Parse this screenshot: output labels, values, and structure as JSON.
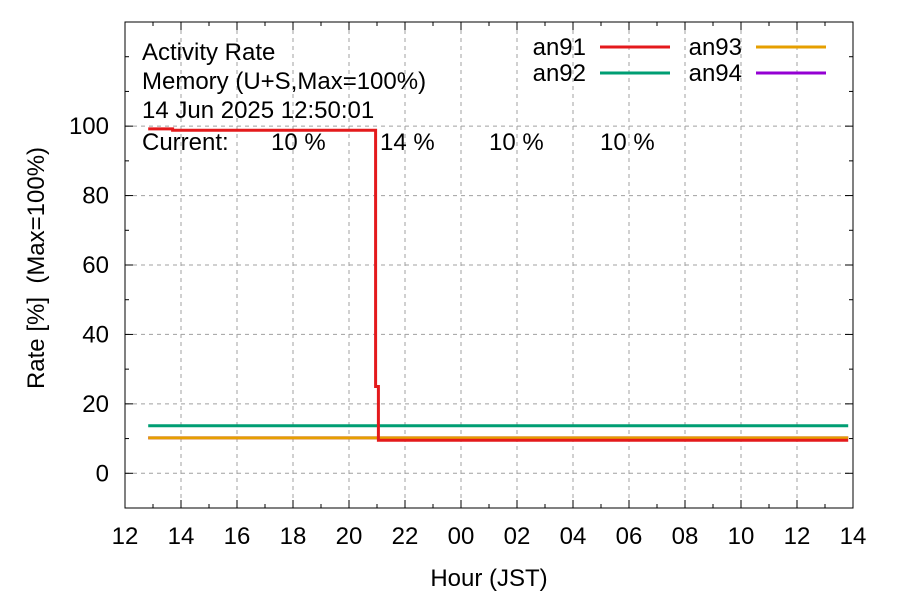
{
  "chart_data": {
    "type": "line",
    "title_lines": [
      "Activity Rate",
      "Memory (U+S,Max=100%)",
      "14 Jun 2025 12:50:01"
    ],
    "current_label": "Current:",
    "current_values": [
      {
        "text": "10 %",
        "color": "#e41a1c"
      },
      {
        "text": "14 %",
        "color": "#009e73"
      },
      {
        "text": "10 %",
        "color": "#e69f00"
      },
      {
        "text": "10 %",
        "color": "#9400d3"
      }
    ],
    "xlabel": "Hour (JST)",
    "ylabel": "Rate [%]  (Max=100%)",
    "x_tick_labels": [
      "12",
      "14",
      "16",
      "18",
      "20",
      "22",
      "00",
      "02",
      "04",
      "06",
      "08",
      "10",
      "12",
      "14"
    ],
    "xlim_hours": [
      12,
      38
    ],
    "y_ticks": [
      0,
      20,
      40,
      60,
      80,
      100
    ],
    "ylim": [
      -10,
      130
    ],
    "grid": true,
    "legend_position": "top-right",
    "series": [
      {
        "name": "an91",
        "color": "#e41a1c",
        "points": [
          [
            12.83,
            99.2
          ],
          [
            13.7,
            99.2
          ],
          [
            13.7,
            98.8
          ],
          [
            20.95,
            98.8
          ],
          [
            20.95,
            25
          ],
          [
            21.05,
            25
          ],
          [
            21.05,
            9.5
          ],
          [
            37.83,
            9.5
          ]
        ]
      },
      {
        "name": "an92",
        "color": "#009e73",
        "points": [
          [
            12.83,
            13.7
          ],
          [
            37.83,
            13.7
          ]
        ]
      },
      {
        "name": "an93",
        "color": "#e69f00",
        "points": [
          [
            12.83,
            10.2
          ],
          [
            37.83,
            10.2
          ]
        ]
      },
      {
        "name": "an94",
        "color": "#9400d3",
        "points": [
          [
            12.83,
            10.2
          ],
          [
            37.83,
            10.2
          ]
        ]
      }
    ]
  }
}
